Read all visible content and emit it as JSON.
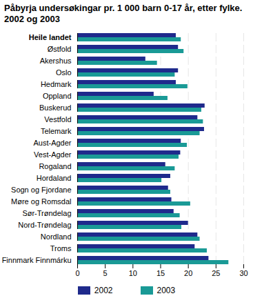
{
  "chart_data": {
    "type": "bar",
    "orientation": "horizontal",
    "title": "Påbyrja undersøkingar pr. 1 000 barn 0-17 år, etter fylke. 2002 og 2003",
    "categories": [
      "Heile landet",
      "Østfold",
      "Akershus",
      "Oslo",
      "Hedmark",
      "Oppland",
      "Buskerud",
      "Vestfold",
      "Telemark",
      "Aust-Agder",
      "Vest-Agder",
      "Rogaland",
      "Hordaland",
      "Sogn og Fjordane",
      "Møre og Romsdal",
      "Sør-Trøndelag",
      "Nord-Trøndelag",
      "Nordland",
      "Troms",
      "Finnmark Finnmárku"
    ],
    "series": [
      {
        "name": "2002",
        "color": "#1f2a8c",
        "values": [
          17.8,
          18.2,
          12.3,
          18.2,
          17.8,
          13.8,
          23.0,
          21.7,
          22.9,
          18.7,
          18.6,
          15.9,
          16.8,
          16.4,
          17.0,
          17.4,
          20.0,
          21.7,
          21.2,
          23.7
        ]
      },
      {
        "name": "2003",
        "color": "#1a9a96",
        "values": [
          18.7,
          19.2,
          14.4,
          17.6,
          19.9,
          16.3,
          22.4,
          22.7,
          22.1,
          19.8,
          18.3,
          17.6,
          15.2,
          16.8,
          20.4,
          18.5,
          18.8,
          22.1,
          23.4,
          27.3
        ]
      }
    ],
    "xlim": [
      0,
      30
    ],
    "xticks": [
      0,
      5,
      10,
      15,
      20,
      25,
      30
    ],
    "grid": true,
    "legend": "bottom"
  }
}
